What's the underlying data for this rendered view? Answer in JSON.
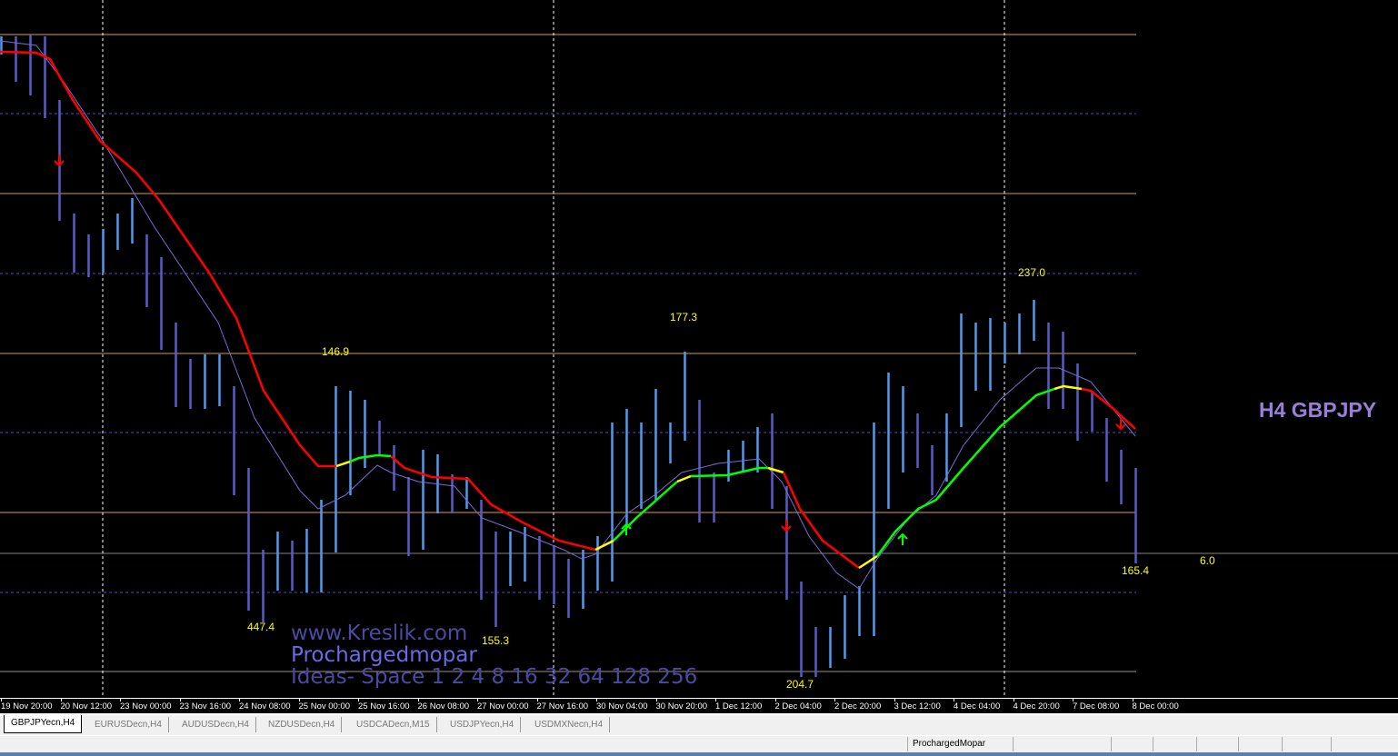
{
  "chart": {
    "symbol_label": "H4 GBPJPY",
    "labels": [
      "447.4",
      "155.3",
      "146.9",
      "177.3",
      "204.7",
      "237.0",
      "165.4",
      "6.0"
    ],
    "watermark": [
      "www.Kreslik.com",
      "Prochargedmopar",
      "Ideas- Space 1 2 4 8 16 32 64 128 256"
    ],
    "colors": {
      "background": "#000000",
      "bar_up": "#5599ee",
      "bar_down": "#5b5bc8",
      "ma_down": "#ff0000",
      "ma_up": "#00ff00",
      "ma_flat": "#ffff00",
      "ma_thin": "#7a6ad8",
      "label": "#ffff00",
      "symbol_label": "#9a7fd8"
    },
    "arrows": [
      {
        "dir": "down",
        "color": "#ff0000"
      },
      {
        "dir": "up",
        "color": "#00ff00"
      },
      {
        "dir": "down",
        "color": "#ff0000"
      },
      {
        "dir": "up",
        "color": "#00ff00"
      },
      {
        "dir": "down",
        "color": "#ff0000"
      }
    ]
  },
  "time_axis": [
    "19 Nov 20:00",
    "20 Nov 12:00",
    "23 Nov 00:00",
    "23 Nov 16:00",
    "24 Nov 08:00",
    "25 Nov 00:00",
    "25 Nov 16:00",
    "26 Nov 08:00",
    "27 Nov 00:00",
    "27 Nov 16:00",
    "30 Nov 04:00",
    "30 Nov 20:00",
    "1 Dec 12:00",
    "2 Dec 04:00",
    "2 Dec 20:00",
    "3 Dec 12:00",
    "4 Dec 04:00",
    "4 Dec 20:00",
    "7 Dec 08:00",
    "8 Dec 00:00"
  ],
  "tabs": [
    "GBPJPYecn,H4",
    "EURUSDecn,H4",
    "AUDUSDecn,H4",
    "NZDUSDecn,H4",
    "USDCADecn,M15",
    "USDJPYecn,H4",
    "USDMXNecn,H4"
  ],
  "active_tab": "GBPJPYecn,H4",
  "status": {
    "profile": "ProchargedMopar"
  }
}
